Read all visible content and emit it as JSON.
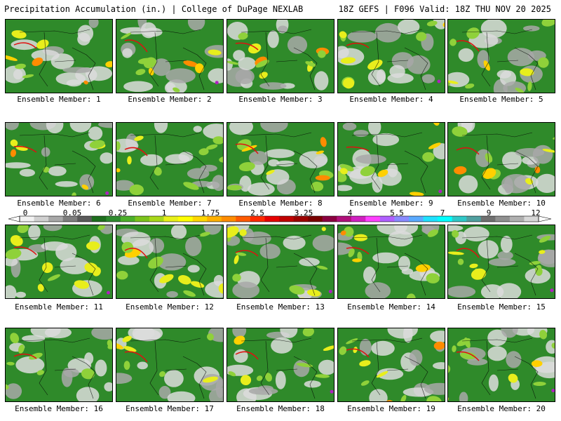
{
  "header": {
    "left": "Precipitation Accumulation (in.) | College of DuPage NEXLAB",
    "right": "18Z GEFS | F096 Valid: 18Z THU NOV 20 2025"
  },
  "members": [
    "Ensemble Member: 1",
    "Ensemble Member: 2",
    "Ensemble Member: 3",
    "Ensemble Member: 4",
    "Ensemble Member: 5",
    "Ensemble Member: 6",
    "Ensemble Member: 7",
    "Ensemble Member: 8",
    "Ensemble Member: 9",
    "Ensemble Member: 10",
    "Ensemble Member: 11",
    "Ensemble Member: 12",
    "Ensemble Member: 13",
    "Ensemble Member: 14",
    "Ensemble Member: 15",
    "Ensemble Member: 16",
    "Ensemble Member: 17",
    "Ensemble Member: 18",
    "Ensemble Member: 19",
    "Ensemble Member: 20"
  ],
  "scale": {
    "ticks": [
      "0",
      "0.05",
      "0.25",
      "1",
      "1.75",
      "2.5",
      "3.25",
      "4",
      "5.5",
      "7",
      "9",
      "12"
    ],
    "colors": [
      "#f2f2f2",
      "#d0d0d0",
      "#a8a8a8",
      "#7e7e7e",
      "#5a5a5a",
      "#1e6e1e",
      "#2e8b2e",
      "#4caf2a",
      "#7cc31c",
      "#a8d81a",
      "#e8f01a",
      "#ffff00",
      "#ffd700",
      "#ffb000",
      "#ff8c00",
      "#ff5a00",
      "#ff2a00",
      "#e60000",
      "#c00000",
      "#9c0000",
      "#7a0000",
      "#8b0040",
      "#b0107a",
      "#d020c0",
      "#ff40ff",
      "#b060ff",
      "#8a8aff",
      "#5aaaff",
      "#20e0ff",
      "#00ffff",
      "#30c8c8",
      "#50a0a0",
      "#707070",
      "#909090",
      "#b0b0b0",
      "#d8d8d8"
    ]
  },
  "map": {
    "land_color": "#2f8a2a",
    "colors": [
      "#dcdcdc",
      "#a8a8a8",
      "#8fd13a",
      "#e8ee1c",
      "#ffd000",
      "#ff8c00",
      "#e01010",
      "#b020c0"
    ]
  }
}
